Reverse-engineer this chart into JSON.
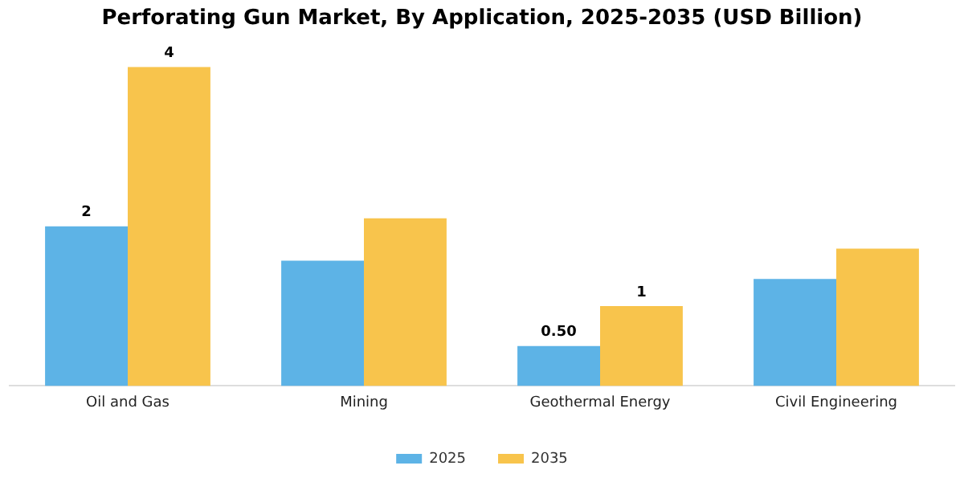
{
  "chart_data": {
    "type": "bar",
    "title": "Perforating Gun Market, By Application, 2025-2035 (USD Billion)",
    "categories": [
      "Oil and Gas",
      "Mining",
      "Geothermal Energy",
      "Civil Engineering"
    ],
    "series": [
      {
        "name": "2025",
        "color": "#5db3e6",
        "values": [
          2,
          1.57,
          0.5,
          1.34
        ],
        "value_labels": [
          "2",
          null,
          "0.50",
          null
        ]
      },
      {
        "name": "2035",
        "color": "#f8c44c",
        "values": [
          4,
          2.1,
          1,
          1.72
        ],
        "value_labels": [
          "4",
          null,
          "1",
          null
        ]
      }
    ],
    "legend": "bottom",
    "grid": false,
    "tick_labels": "x"
  }
}
